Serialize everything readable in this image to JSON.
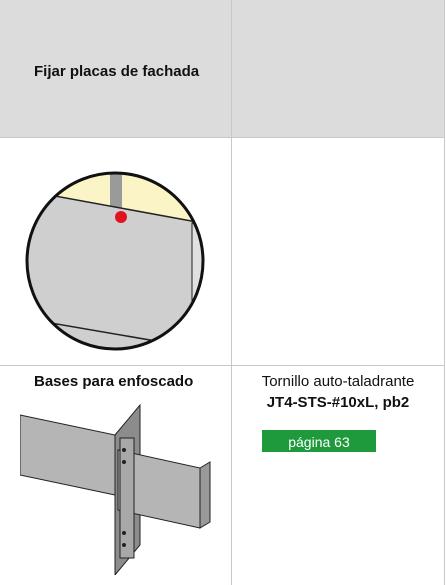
{
  "header_cell": "Fijar placas de fachada",
  "row": {
    "title": "Bases para enfoscado",
    "description": "Tornillo auto-taladrante",
    "product": "JT4-STS-#10xL, pb2",
    "link": "página 63"
  }
}
